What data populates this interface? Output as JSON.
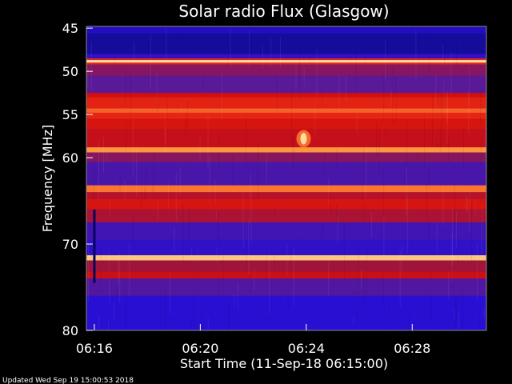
{
  "chart_data": {
    "type": "heatmap",
    "title": "Solar radio Flux (Glasgow)",
    "xlabel": "Start Time (11-Sep-18 06:15:00)",
    "ylabel": "Frequency [MHz]",
    "x_unit": "minutes after 06:15:00",
    "xlim": [
      0.7,
      15.8
    ],
    "ylim": [
      44.8,
      80
    ],
    "x_ticks": [
      {
        "value": 1,
        "label": "06:16"
      },
      {
        "value": 5,
        "label": "06:20"
      },
      {
        "value": 9,
        "label": "06:24"
      },
      {
        "value": 13,
        "label": "06:28"
      }
    ],
    "y_ticks": [
      {
        "value": 45,
        "label": "45"
      },
      {
        "value": 50,
        "label": "50"
      },
      {
        "value": 55,
        "label": "55"
      },
      {
        "value": 60,
        "label": "60"
      },
      {
        "value": 70,
        "label": "70"
      },
      {
        "value": 80,
        "label": "80"
      }
    ],
    "intensity_scale": "0 = low (blue/purple), 1 = high (yellow/white)",
    "frequency_bands": [
      {
        "from": 44.8,
        "to": 45.6,
        "intensity": 0.08
      },
      {
        "from": 45.6,
        "to": 48.0,
        "intensity": 0.04
      },
      {
        "from": 48.0,
        "to": 48.5,
        "intensity": 0.12
      },
      {
        "from": 48.5,
        "to": 48.7,
        "intensity": 0.6
      },
      {
        "from": 48.7,
        "to": 49.0,
        "intensity": 0.95
      },
      {
        "from": 49.0,
        "to": 49.2,
        "intensity": 0.6
      },
      {
        "from": 49.2,
        "to": 50.5,
        "intensity": 0.3
      },
      {
        "from": 50.5,
        "to": 52.5,
        "intensity": 0.22
      },
      {
        "from": 52.5,
        "to": 53.0,
        "intensity": 0.5
      },
      {
        "from": 53.0,
        "to": 54.3,
        "intensity": 0.58
      },
      {
        "from": 54.3,
        "to": 54.8,
        "intensity": 0.72
      },
      {
        "from": 54.8,
        "to": 55.5,
        "intensity": 0.6
      },
      {
        "from": 55.5,
        "to": 56.7,
        "intensity": 0.52
      },
      {
        "from": 56.7,
        "to": 58.8,
        "intensity": 0.46
      },
      {
        "from": 58.8,
        "to": 59.4,
        "intensity": 0.8
      },
      {
        "from": 59.4,
        "to": 60.5,
        "intensity": 0.3
      },
      {
        "from": 60.5,
        "to": 63.2,
        "intensity": 0.18
      },
      {
        "from": 63.2,
        "to": 64.0,
        "intensity": 0.75
      },
      {
        "from": 64.0,
        "to": 64.8,
        "intensity": 0.42
      },
      {
        "from": 64.8,
        "to": 66.0,
        "intensity": 0.52
      },
      {
        "from": 66.0,
        "to": 67.5,
        "intensity": 0.38
      },
      {
        "from": 67.5,
        "to": 69.5,
        "intensity": 0.16
      },
      {
        "from": 69.5,
        "to": 71.3,
        "intensity": 0.12
      },
      {
        "from": 71.3,
        "to": 71.9,
        "intensity": 0.9
      },
      {
        "from": 71.9,
        "to": 73.2,
        "intensity": 0.35
      },
      {
        "from": 73.2,
        "to": 74.0,
        "intensity": 0.48
      },
      {
        "from": 74.0,
        "to": 76.0,
        "intensity": 0.2
      },
      {
        "from": 76.0,
        "to": 80.0,
        "intensity": 0.1
      }
    ],
    "bursts": [
      {
        "time": 8.9,
        "freq_from": 56.8,
        "freq_to": 58.8,
        "intensity": 0.95
      },
      {
        "time": 1.0,
        "freq_from": 66.0,
        "freq_to": 74.5,
        "intensity": 0.0,
        "note": "data gap"
      }
    ],
    "footer_text": "Updated Wed Sep 19 15:00:53 2018",
    "colors": {
      "background": "#000000",
      "low": "#2a0fd0",
      "mid": "#cc1010",
      "high": "#ffe080"
    }
  }
}
